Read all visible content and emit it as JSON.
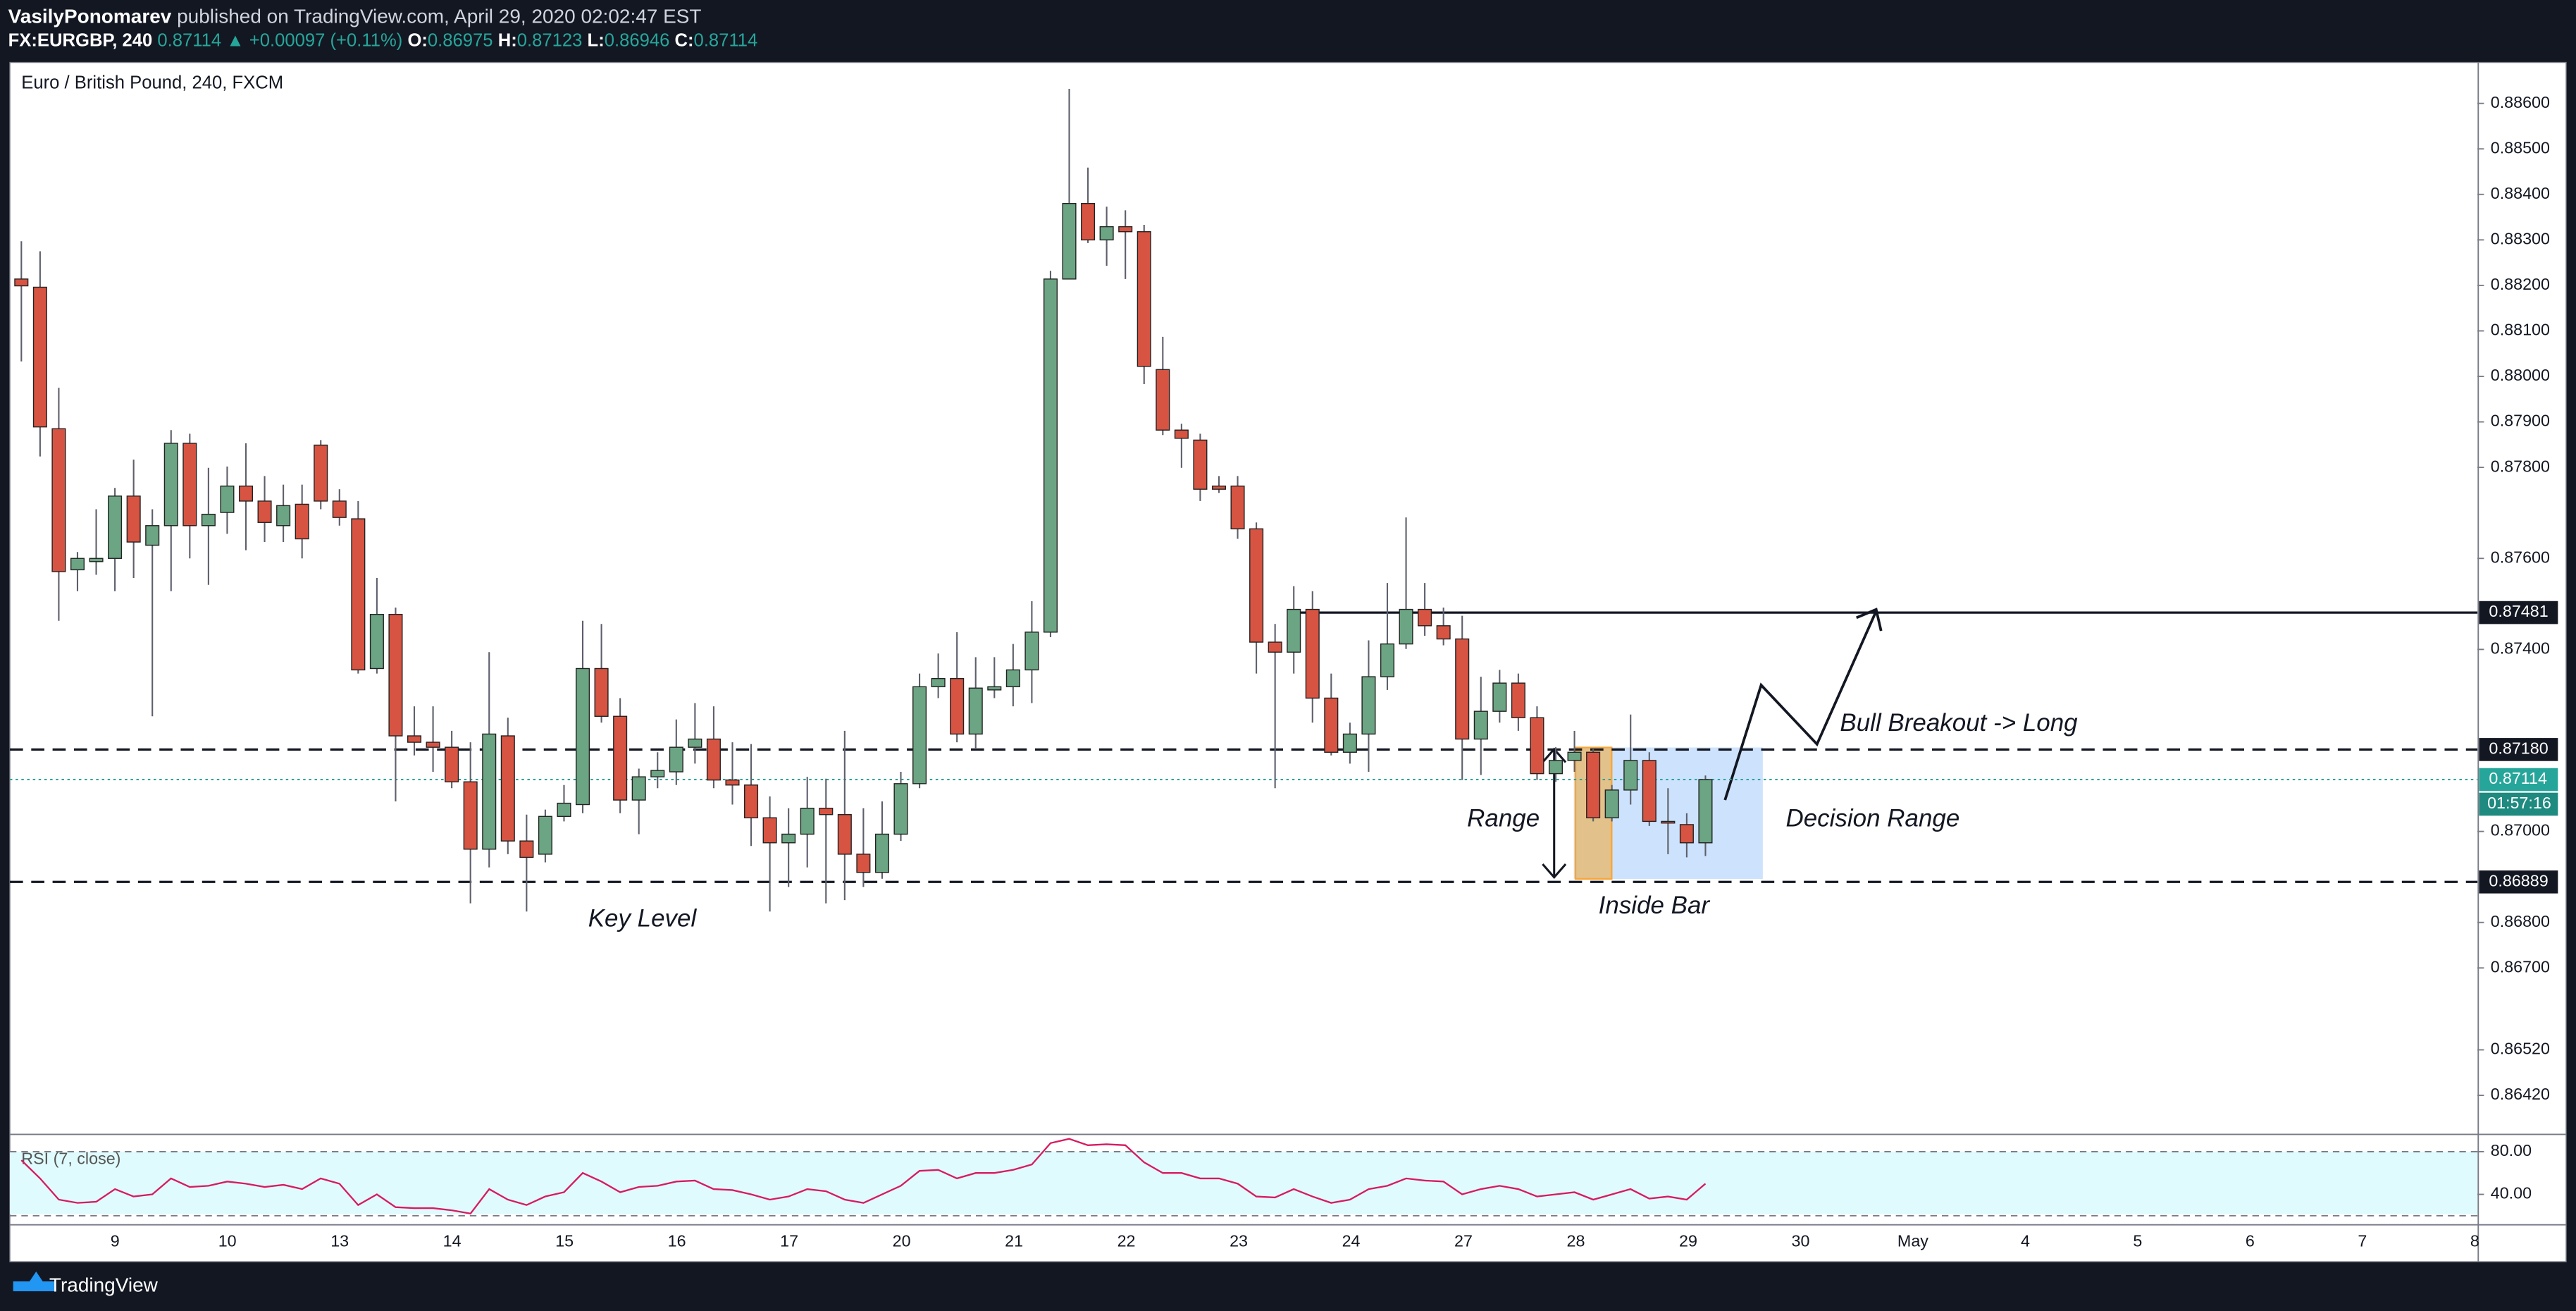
{
  "header": {
    "author": "VasilyPonomarev",
    "published": "published on TradingView.com, April 29, 2020 02:02:47 EST",
    "symbol": "FX:EURGBP, 240",
    "price": "0.87114",
    "change": "▲ +0.00097 (+0.11%)",
    "ohlc": [
      [
        "O:",
        "0.86975"
      ],
      [
        "H:",
        "0.87123"
      ],
      [
        "L:",
        "0.86946"
      ],
      [
        "C:",
        "0.87114"
      ]
    ]
  },
  "chart_data": {
    "type": "candlestick",
    "title": "Euro / British Pound, 240, FXCM",
    "up_color": "#6ba583",
    "down_color": "#d75442",
    "x_labels": [
      "9",
      "10",
      "13",
      "14",
      "15",
      "16",
      "17",
      "20",
      "21",
      "22",
      "23",
      "24",
      "27",
      "28",
      "29",
      "30",
      "May",
      "4",
      "5",
      "6",
      "7",
      "8"
    ],
    "ylim": [
      0.86336,
      0.8869
    ],
    "yticks": [
      {
        "value": 0.8642,
        "label": "0.86420"
      },
      {
        "value": 0.8652,
        "label": "0.86520"
      },
      {
        "value": 0.867,
        "label": "0.86700"
      },
      {
        "value": 0.868,
        "label": "0.86800"
      },
      {
        "value": 0.87,
        "label": "0.87000"
      },
      {
        "value": 0.874,
        "label": "0.87400"
      },
      {
        "value": 0.876,
        "label": "0.87600"
      },
      {
        "value": 0.878,
        "label": "0.87800"
      },
      {
        "value": 0.879,
        "label": "0.87900"
      },
      {
        "value": 0.88,
        "label": "0.88000"
      },
      {
        "value": 0.881,
        "label": "0.88100"
      },
      {
        "value": 0.882,
        "label": "0.88200"
      },
      {
        "value": 0.883,
        "label": "0.88300"
      },
      {
        "value": 0.884,
        "label": "0.88400"
      },
      {
        "value": 0.885,
        "label": "0.88500"
      },
      {
        "value": 0.886,
        "label": "0.88600"
      }
    ],
    "ohlc": [
      [
        0.88214,
        0.88297,
        0.88033,
        0.88199
      ],
      [
        0.88196,
        0.88275,
        0.87824,
        0.87889
      ],
      [
        0.87885,
        0.87975,
        0.87463,
        0.87571
      ],
      [
        0.87575,
        0.87614,
        0.87528,
        0.876
      ],
      [
        0.87593,
        0.87708,
        0.87564,
        0.876
      ],
      [
        0.876,
        0.87755,
        0.87528,
        0.87737
      ],
      [
        0.87737,
        0.87817,
        0.87557,
        0.87636
      ],
      [
        0.87629,
        0.87708,
        0.87253,
        0.87672
      ],
      [
        0.87672,
        0.87882,
        0.87528,
        0.87853
      ],
      [
        0.87853,
        0.87874,
        0.876,
        0.87672
      ],
      [
        0.87672,
        0.87799,
        0.87542,
        0.87697
      ],
      [
        0.87701,
        0.87802,
        0.87654,
        0.87759
      ],
      [
        0.87759,
        0.87853,
        0.87618,
        0.87726
      ],
      [
        0.87726,
        0.87781,
        0.87636,
        0.87679
      ],
      [
        0.87672,
        0.87762,
        0.87636,
        0.87716
      ],
      [
        0.87719,
        0.87762,
        0.876,
        0.87643
      ],
      [
        0.87849,
        0.8786,
        0.87708,
        0.87726
      ],
      [
        0.87726,
        0.87752,
        0.87672,
        0.8769
      ],
      [
        0.87687,
        0.87726,
        0.87347,
        0.87355
      ],
      [
        0.87358,
        0.87557,
        0.87347,
        0.87477
      ],
      [
        0.87477,
        0.87492,
        0.87066,
        0.8721
      ],
      [
        0.8721,
        0.87275,
        0.87167,
        0.87196
      ],
      [
        0.87196,
        0.87275,
        0.87131,
        0.87185
      ],
      [
        0.87185,
        0.87221,
        0.87095,
        0.87109
      ],
      [
        0.87109,
        0.87196,
        0.86842,
        0.86961
      ],
      [
        0.86961,
        0.87394,
        0.86921,
        0.87214
      ],
      [
        0.8721,
        0.8725,
        0.8695,
        0.86979
      ],
      [
        0.86979,
        0.87037,
        0.86824,
        0.86943
      ],
      [
        0.8695,
        0.87048,
        0.86932,
        0.87033
      ],
      [
        0.87033,
        0.87102,
        0.87022,
        0.87062
      ],
      [
        0.87059,
        0.87463,
        0.8704,
        0.87358
      ],
      [
        0.87358,
        0.87456,
        0.87239,
        0.87253
      ],
      [
        0.87253,
        0.87293,
        0.8704,
        0.87069
      ],
      [
        0.87069,
        0.87138,
        0.86994,
        0.8712
      ],
      [
        0.8712,
        0.87174,
        0.87095,
        0.87134
      ],
      [
        0.87131,
        0.87246,
        0.87102,
        0.87185
      ],
      [
        0.87185,
        0.87282,
        0.87149,
        0.87203
      ],
      [
        0.87203,
        0.87275,
        0.87095,
        0.87113
      ],
      [
        0.87113,
        0.87196,
        0.87059,
        0.87102
      ],
      [
        0.87102,
        0.87192,
        0.86968,
        0.8703
      ],
      [
        0.8703,
        0.87077,
        0.86824,
        0.86975
      ],
      [
        0.86975,
        0.87051,
        0.86878,
        0.86994
      ],
      [
        0.86994,
        0.8712,
        0.86921,
        0.87051
      ],
      [
        0.87051,
        0.87116,
        0.86842,
        0.87037
      ],
      [
        0.87037,
        0.87221,
        0.86849,
        0.8695
      ],
      [
        0.8695,
        0.87051,
        0.86878,
        0.8691
      ],
      [
        0.8691,
        0.87066,
        0.86896,
        0.86994
      ],
      [
        0.86994,
        0.87131,
        0.86979,
        0.87105
      ],
      [
        0.87105,
        0.87347,
        0.87095,
        0.87318
      ],
      [
        0.87318,
        0.87391,
        0.87293,
        0.87336
      ],
      [
        0.87336,
        0.87438,
        0.87196,
        0.87214
      ],
      [
        0.87214,
        0.87383,
        0.87181,
        0.87315
      ],
      [
        0.87311,
        0.87383,
        0.87293,
        0.87318
      ],
      [
        0.87318,
        0.87412,
        0.87275,
        0.87355
      ],
      [
        0.87355,
        0.87506,
        0.87282,
        0.87438
      ],
      [
        0.87438,
        0.88232,
        0.87427,
        0.88214
      ],
      [
        0.88214,
        0.88632,
        0.88214,
        0.8838
      ],
      [
        0.8838,
        0.88459,
        0.88293,
        0.883
      ],
      [
        0.883,
        0.88373,
        0.88243,
        0.88329
      ],
      [
        0.88329,
        0.88365,
        0.88214,
        0.88318
      ],
      [
        0.88318,
        0.88333,
        0.87983,
        0.88022
      ],
      [
        0.88015,
        0.88087,
        0.87871,
        0.87882
      ],
      [
        0.87882,
        0.87896,
        0.87799,
        0.87864
      ],
      [
        0.8786,
        0.87874,
        0.87726,
        0.87752
      ],
      [
        0.87759,
        0.87781,
        0.87744,
        0.87752
      ],
      [
        0.87759,
        0.87781,
        0.87643,
        0.87665
      ],
      [
        0.87665,
        0.87679,
        0.87347,
        0.87416
      ],
      [
        0.87416,
        0.87456,
        0.87095,
        0.87394
      ],
      [
        0.87394,
        0.87539,
        0.87347,
        0.87488
      ],
      [
        0.87488,
        0.87528,
        0.87239,
        0.87293
      ],
      [
        0.87293,
        0.87347,
        0.87167,
        0.87174
      ],
      [
        0.87174,
        0.87239,
        0.87149,
        0.87214
      ],
      [
        0.87214,
        0.8742,
        0.87131,
        0.8734
      ],
      [
        0.8734,
        0.87546,
        0.87311,
        0.87412
      ],
      [
        0.87412,
        0.8769,
        0.87401,
        0.87488
      ],
      [
        0.87488,
        0.87546,
        0.8743,
        0.87452
      ],
      [
        0.87452,
        0.87492,
        0.87409,
        0.87423
      ],
      [
        0.87423,
        0.87474,
        0.87113,
        0.87203
      ],
      [
        0.87203,
        0.8734,
        0.87124,
        0.87264
      ],
      [
        0.87264,
        0.87355,
        0.87239,
        0.87326
      ],
      [
        0.87326,
        0.87347,
        0.87221,
        0.8725
      ],
      [
        0.8725,
        0.87275,
        0.87113,
        0.87127
      ],
      [
        0.87127,
        0.87185,
        0.87109,
        0.87156
      ],
      [
        0.87156,
        0.87221,
        0.87131,
        0.87174
      ],
      [
        0.87174,
        0.87181,
        0.87022,
        0.8703
      ],
      [
        0.8703,
        0.87102,
        0.87022,
        0.87091
      ],
      [
        0.87091,
        0.87257,
        0.87059,
        0.87156
      ],
      [
        0.87156,
        0.87174,
        0.87012,
        0.87022
      ],
      [
        0.87022,
        0.87095,
        0.8695,
        0.87019
      ],
      [
        0.87015,
        0.8704,
        0.86943,
        0.86975
      ],
      [
        0.86975,
        0.87123,
        0.86946,
        0.87114
      ]
    ],
    "levels": [
      {
        "value": 0.87481,
        "label": "0.87481",
        "style": "solid",
        "color": "#131722"
      },
      {
        "value": 0.8718,
        "label": "0.87180",
        "style": "dashed",
        "color": "#131722"
      },
      {
        "value": 0.86889,
        "label": "0.86889",
        "style": "dashed",
        "color": "#131722"
      },
      {
        "value": 0.87114,
        "label": "0.87114",
        "style": "dotted",
        "color": "#26a69a"
      }
    ],
    "countdown": "01:57:16",
    "annotations": [
      "Key Level",
      "Range",
      "Inside Bar",
      "Decision Range",
      "Bull Breakout -> Long"
    ],
    "rsi": {
      "title": "RSI (7, close)",
      "color": "#d81b60",
      "ylim": [
        12.3,
        95.4
      ],
      "band": [
        20,
        80
      ],
      "yticks": [
        {
          "value": 80,
          "label": "80.00"
        },
        {
          "value": 40,
          "label": "40.00"
        }
      ],
      "values": [
        72,
        55,
        35,
        32,
        33,
        45,
        38,
        40,
        55,
        47,
        48,
        52,
        50,
        47,
        49,
        45,
        55,
        50,
        30,
        40,
        28,
        27,
        27,
        25,
        22,
        45,
        35,
        30,
        38,
        42,
        60,
        52,
        42,
        47,
        48,
        52,
        53,
        45,
        44,
        40,
        35,
        38,
        45,
        43,
        35,
        32,
        40,
        48,
        62,
        63,
        55,
        60,
        60,
        63,
        68,
        88,
        92,
        86,
        87,
        86,
        70,
        60,
        60,
        55,
        55,
        50,
        38,
        37,
        45,
        38,
        32,
        35,
        45,
        48,
        55,
        53,
        52,
        40,
        45,
        48,
        45,
        38,
        40,
        42,
        35,
        40,
        45,
        36,
        38,
        35,
        50
      ]
    }
  },
  "footer": {
    "brand": "TradingView"
  }
}
